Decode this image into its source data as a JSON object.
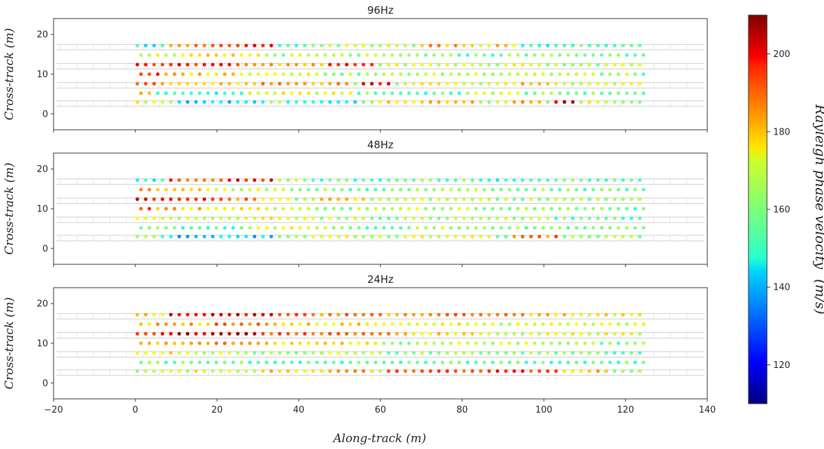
{
  "chart_data": {
    "type": "scatter",
    "xlabel": "Along-track (m)",
    "ylabel": "Cross-track (m)",
    "xlim": [
      -20,
      140
    ],
    "ylim": [
      -4,
      24
    ],
    "x_ticks": [
      "−20",
      "0",
      "20",
      "40",
      "60",
      "80",
      "100",
      "120",
      "140"
    ],
    "y_ticks": [
      "0",
      "10",
      "20"
    ],
    "rows_y": [
      3,
      5.2,
      7.6,
      10,
      12.4,
      14.8,
      17.2
    ],
    "x_start": 0.5,
    "x_step": 2.05,
    "points_per_row": 61,
    "colorbar": {
      "label": "Rayleigh phase velocity",
      "unit": "(m/s)",
      "range": [
        110,
        210
      ],
      "ticks": [
        "120",
        "140",
        "160",
        "180",
        "200"
      ]
    },
    "panels": [
      {
        "title": "96Hz",
        "rows": [
          {
            "y": 3,
            "base": 164,
            "anomalies": [
              [
                0,
                3,
                170
              ],
              [
                5,
                15,
                143
              ],
              [
                18,
                26,
                150
              ],
              [
                30,
                40,
                176
              ],
              [
                45,
                48,
                185
              ],
              [
                50,
                52,
                205
              ],
              [
                54,
                56,
                170
              ],
              [
                57,
                60,
                166
              ]
            ]
          },
          {
            "y": 5.2,
            "base": 159,
            "anomalies": [
              [
                0,
                1,
                178
              ],
              [
                2,
                12,
                152
              ],
              [
                13,
                25,
                170
              ],
              [
                30,
                38,
                155
              ],
              [
                40,
                45,
                168
              ],
              [
                52,
                60,
                158
              ]
            ]
          },
          {
            "y": 7.6,
            "base": 168,
            "anomalies": [
              [
                0,
                2,
                193
              ],
              [
                3,
                14,
                175
              ],
              [
                15,
                25,
                182
              ],
              [
                27,
                30,
                200
              ],
              [
                33,
                38,
                172
              ],
              [
                45,
                50,
                176
              ]
            ]
          },
          {
            "y": 10,
            "base": 165,
            "anomalies": [
              [
                0,
                2,
                192
              ],
              [
                3,
                12,
                178
              ],
              [
                13,
                20,
                173
              ],
              [
                24,
                30,
                162
              ],
              [
                40,
                48,
                168
              ],
              [
                55,
                60,
                162
              ]
            ]
          },
          {
            "y": 12.4,
            "base": 165,
            "anomalies": [
              [
                0,
                12,
                196
              ],
              [
                13,
                16,
                185
              ],
              [
                17,
                22,
                178
              ],
              [
                23,
                28,
                193
              ],
              [
                30,
                40,
                168
              ],
              [
                45,
                48,
                172
              ]
            ]
          },
          {
            "y": 14.8,
            "base": 161,
            "anomalies": [
              [
                0,
                6,
                170
              ],
              [
                7,
                14,
                173
              ],
              [
                15,
                28,
                163
              ],
              [
                35,
                42,
                158
              ],
              [
                50,
                60,
                160
              ]
            ]
          },
          {
            "y": 17.2,
            "base": 164,
            "anomalies": [
              [
                0,
                3,
                150
              ],
              [
                4,
                12,
                186
              ],
              [
                13,
                16,
                196
              ],
              [
                17,
                20,
                150
              ],
              [
                21,
                26,
                165
              ],
              [
                27,
                32,
                166
              ],
              [
                34,
                40,
                180
              ],
              [
                42,
                45,
                175
              ],
              [
                46,
                52,
                150
              ],
              [
                53,
                60,
                155
              ]
            ]
          }
        ]
      },
      {
        "title": "48Hz",
        "rows": [
          {
            "y": 3,
            "base": 163,
            "anomalies": [
              [
                0,
                3,
                160
              ],
              [
                4,
                16,
                143
              ],
              [
                17,
                20,
                160
              ],
              [
                21,
                26,
                168
              ],
              [
                33,
                42,
                172
              ],
              [
                45,
                50,
                185
              ],
              [
                53,
                60,
                163
              ]
            ]
          },
          {
            "y": 5.2,
            "base": 159,
            "anomalies": [
              [
                0,
                4,
                158
              ],
              [
                5,
                12,
                155
              ],
              [
                13,
                20,
                170
              ],
              [
                21,
                25,
                165
              ],
              [
                28,
                35,
                160
              ],
              [
                36,
                45,
                163
              ],
              [
                50,
                60,
                158
              ]
            ]
          },
          {
            "y": 7.6,
            "base": 163,
            "anomalies": [
              [
                0,
                2,
                176
              ],
              [
                3,
                12,
                168
              ],
              [
                13,
                20,
                172
              ],
              [
                21,
                28,
                165
              ],
              [
                30,
                40,
                162
              ],
              [
                50,
                60,
                158
              ]
            ]
          },
          {
            "y": 10,
            "base": 163,
            "anomalies": [
              [
                0,
                1,
                190
              ],
              [
                2,
                10,
                178
              ],
              [
                11,
                14,
                172
              ],
              [
                15,
                20,
                168
              ],
              [
                30,
                40,
                165
              ],
              [
                50,
                60,
                160
              ]
            ]
          },
          {
            "y": 12.4,
            "base": 163,
            "anomalies": [
              [
                0,
                10,
                198
              ],
              [
                11,
                14,
                185
              ],
              [
                15,
                18,
                176
              ],
              [
                22,
                27,
                178
              ],
              [
                30,
                40,
                165
              ],
              [
                50,
                60,
                162
              ]
            ]
          },
          {
            "y": 14.8,
            "base": 162,
            "anomalies": [
              [
                0,
                8,
                178
              ],
              [
                9,
                14,
                168
              ],
              [
                15,
                20,
                165
              ],
              [
                25,
                35,
                160
              ],
              [
                50,
                60,
                158
              ]
            ]
          },
          {
            "y": 17.2,
            "base": 158,
            "anomalies": [
              [
                0,
                3,
                150
              ],
              [
                4,
                10,
                190
              ],
              [
                11,
                16,
                196
              ],
              [
                17,
                20,
                165
              ],
              [
                20,
                30,
                155
              ],
              [
                40,
                50,
                152
              ],
              [
                55,
                60,
                155
              ]
            ]
          }
        ]
      },
      {
        "title": "24Hz",
        "rows": [
          {
            "y": 3,
            "base": 168,
            "anomalies": [
              [
                0,
                6,
                165
              ],
              [
                7,
                14,
                170
              ],
              [
                15,
                20,
                176
              ],
              [
                21,
                28,
                180
              ],
              [
                30,
                40,
                188
              ],
              [
                41,
                50,
                193
              ],
              [
                51,
                56,
                178
              ],
              [
                57,
                60,
                160
              ]
            ]
          },
          {
            "y": 5.2,
            "base": 155,
            "anomalies": [
              [
                0,
                10,
                158
              ],
              [
                11,
                20,
                157
              ],
              [
                21,
                30,
                155
              ],
              [
                35,
                45,
                158
              ],
              [
                50,
                60,
                156
              ]
            ]
          },
          {
            "y": 7.6,
            "base": 162,
            "anomalies": [
              [
                0,
                4,
                172
              ],
              [
                5,
                12,
                168
              ],
              [
                13,
                20,
                162
              ],
              [
                21,
                28,
                166
              ],
              [
                35,
                45,
                160
              ],
              [
                50,
                60,
                158
              ]
            ]
          },
          {
            "y": 10,
            "base": 168,
            "anomalies": [
              [
                0,
                4,
                182
              ],
              [
                5,
                12,
                185
              ],
              [
                13,
                20,
                180
              ],
              [
                21,
                28,
                175
              ],
              [
                30,
                40,
                165
              ],
              [
                50,
                60,
                162
              ]
            ]
          },
          {
            "y": 12.4,
            "base": 172,
            "anomalies": [
              [
                0,
                4,
                196
              ],
              [
                5,
                14,
                205
              ],
              [
                15,
                20,
                190
              ],
              [
                21,
                30,
                185
              ],
              [
                31,
                40,
                175
              ],
              [
                41,
                50,
                168
              ],
              [
                51,
                60,
                170
              ]
            ]
          },
          {
            "y": 14.8,
            "base": 168,
            "anomalies": [
              [
                0,
                8,
                180
              ],
              [
                9,
                16,
                185
              ],
              [
                17,
                28,
                176
              ],
              [
                30,
                40,
                170
              ],
              [
                50,
                60,
                168
              ]
            ]
          },
          {
            "y": 17.2,
            "base": 172,
            "anomalies": [
              [
                0,
                3,
                175
              ],
              [
                4,
                16,
                200
              ],
              [
                17,
                20,
                190
              ],
              [
                21,
                28,
                185
              ],
              [
                29,
                36,
                182
              ],
              [
                37,
                46,
                185
              ],
              [
                47,
                52,
                178
              ],
              [
                53,
                60,
                172
              ]
            ]
          }
        ]
      }
    ]
  }
}
